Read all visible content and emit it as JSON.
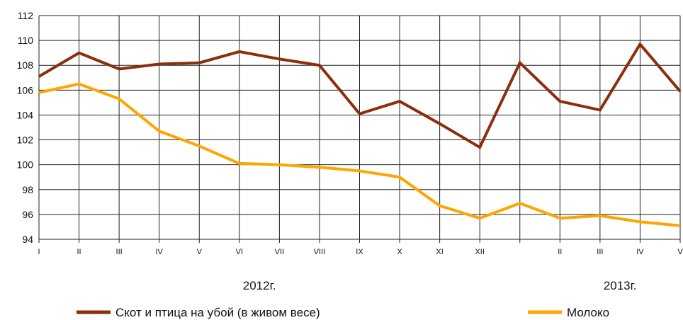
{
  "chart_data": {
    "type": "line",
    "title": "",
    "xlabel": "",
    "ylabel": "",
    "ylim": [
      94,
      112
    ],
    "yticks": [
      94,
      96,
      98,
      100,
      102,
      104,
      106,
      108,
      110,
      112
    ],
    "grid": true,
    "legend_position": "bottom",
    "categories": [
      "I",
      "II",
      "III",
      "IV",
      "V",
      "VI",
      "VII",
      "VIII",
      "IX",
      "X",
      "XI",
      "XII",
      "",
      "II",
      "III",
      "IV",
      "V"
    ],
    "year_labels": [
      {
        "label": "2012г.",
        "at_category_index": 5.5
      },
      {
        "label": "2013г.",
        "at_category_index": 14.5
      }
    ],
    "series": [
      {
        "name": "Скот и птица на убой (в живом весе)",
        "color": "#8B2E0C",
        "values": [
          107.1,
          109.0,
          107.7,
          108.1,
          108.2,
          109.1,
          108.5,
          108.0,
          104.1,
          105.1,
          103.3,
          101.4,
          108.2,
          105.1,
          104.4,
          109.7,
          105.9
        ]
      },
      {
        "name": "Молоко",
        "color": "#FFA500",
        "values": [
          105.8,
          106.5,
          105.3,
          102.7,
          101.5,
          100.1,
          100.0,
          99.8,
          99.5,
          99.0,
          96.7,
          95.7,
          96.9,
          95.7,
          95.9,
          95.4,
          95.1
        ]
      }
    ]
  }
}
